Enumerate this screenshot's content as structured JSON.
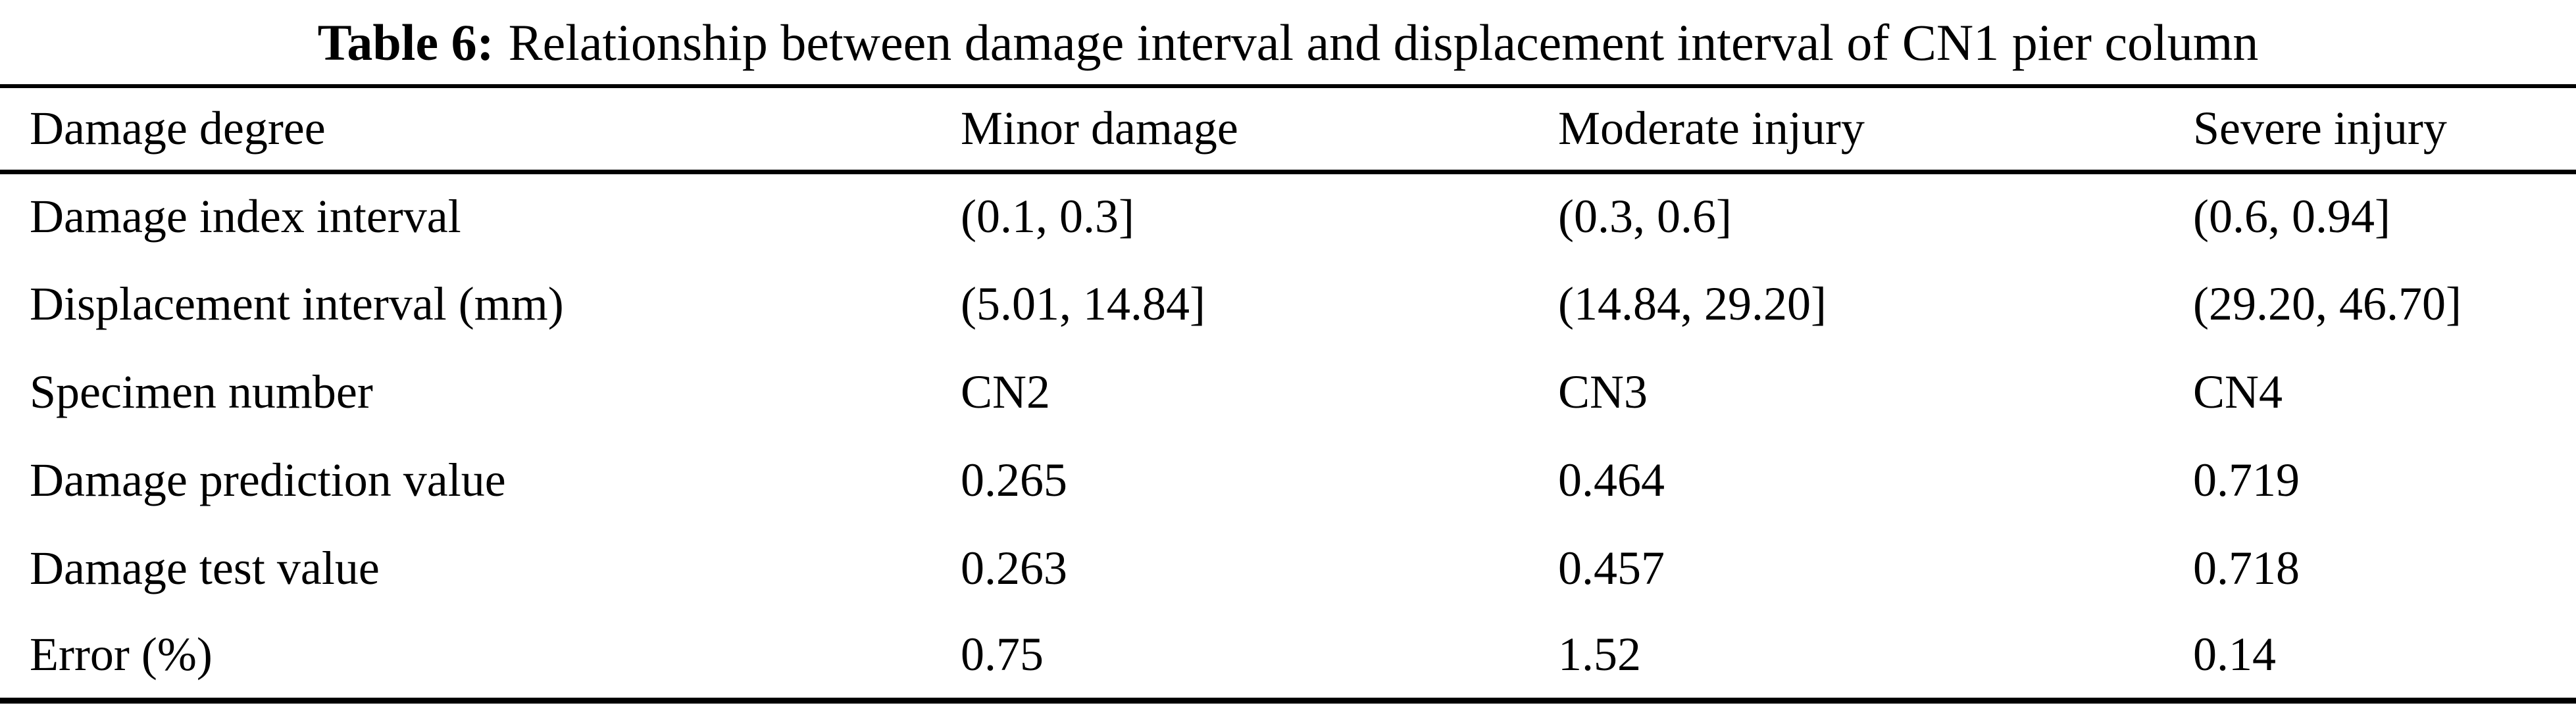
{
  "caption": {
    "label": "Table 6:",
    "text": "Relationship between damage interval and displacement interval of CN1 pier column"
  },
  "table": {
    "columns": [
      "Damage degree",
      "Minor damage",
      "Moderate injury",
      "Severe injury"
    ],
    "rows": [
      {
        "label": "Damage index interval",
        "values": [
          "(0.1, 0.3]",
          "(0.3, 0.6]",
          "(0.6, 0.94]"
        ]
      },
      {
        "label": "Displacement interval (mm)",
        "values": [
          "(5.01, 14.84]",
          "(14.84, 29.20]",
          "(29.20, 46.70]"
        ]
      },
      {
        "label": "Specimen number",
        "values": [
          "CN2",
          "CN3",
          "CN4"
        ]
      },
      {
        "label": "Damage prediction value",
        "values": [
          "0.265",
          "0.464",
          "0.719"
        ]
      },
      {
        "label": "Damage test value",
        "values": [
          "0.263",
          "0.457",
          "0.718"
        ]
      },
      {
        "label": "Error (%)",
        "values": [
          "0.75",
          "1.52",
          "0.14"
        ]
      }
    ]
  },
  "colors": {
    "text": "#000000",
    "background": "#ffffff",
    "rule": "#000000"
  }
}
